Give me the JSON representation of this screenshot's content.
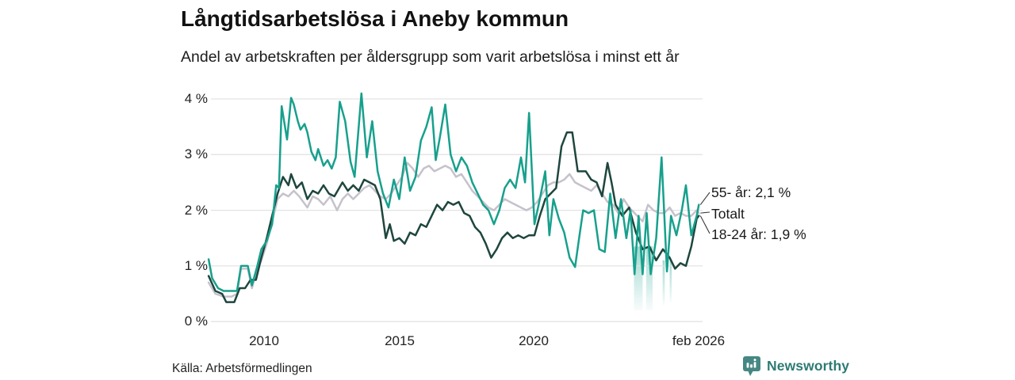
{
  "title": "Långtidsarbetslösa i Aneby kommun",
  "subtitle": "Andel av arbetskraften per åldersgrupp som varit arbetslösa i minst ett år",
  "source": "Källa: Arbetsförmedlingen",
  "branding": {
    "name": "Newsworthy",
    "logo_color": "#468783",
    "text_color": "#2E7B74"
  },
  "colors": {
    "series_55": "#17A08C",
    "series_total": "#C6C2CC",
    "series_1824": "#1E463E",
    "gridline": "#E3E3E3",
    "connector": "#3a3a3a",
    "band_fill": "#17A08C"
  },
  "axes": {
    "y_ticks": [
      "4 %",
      "3 %",
      "2 %",
      "1 %",
      "0 %"
    ],
    "x_ticks": [
      "2010",
      "2015",
      "2020",
      "feb 2026"
    ]
  },
  "end_labels": [
    {
      "text": "55- år: 2,1 %"
    },
    {
      "text": "Totalt"
    },
    {
      "text": "18-24 år: 1,9 %"
    }
  ],
  "chart_data": {
    "type": "line",
    "title": "Långtidsarbetslösa i Aneby kommun",
    "subtitle": "Andel av arbetskraften per åldersgrupp som varit arbetslösa i minst ett år",
    "xlabel": "",
    "ylabel": "%",
    "ylim": [
      0,
      4
    ],
    "xlim": [
      2007.9,
      2026.17
    ],
    "x_unit": "decimal_year",
    "grid": "horizontal",
    "legend_position": "right-end-labels",
    "series": [
      {
        "name": "Totalt",
        "color": "#C6C2CC",
        "end_label": "Totalt",
        "points": [
          [
            2007.95,
            0.7
          ],
          [
            2008.2,
            0.5
          ],
          [
            2008.5,
            0.45
          ],
          [
            2008.8,
            0.45
          ],
          [
            2009.0,
            0.5
          ],
          [
            2009.15,
            0.95
          ],
          [
            2009.4,
            0.95
          ],
          [
            2009.55,
            0.6
          ],
          [
            2009.75,
            0.95
          ],
          [
            2009.9,
            1.1
          ],
          [
            2010.1,
            1.4
          ],
          [
            2010.3,
            1.8
          ],
          [
            2010.5,
            2.2
          ],
          [
            2010.7,
            2.3
          ],
          [
            2010.9,
            2.25
          ],
          [
            2011.1,
            2.35
          ],
          [
            2011.3,
            2.25
          ],
          [
            2011.6,
            2.05
          ],
          [
            2011.8,
            2.25
          ],
          [
            2012.0,
            2.2
          ],
          [
            2012.2,
            2.1
          ],
          [
            2012.45,
            2.25
          ],
          [
            2012.7,
            2.0
          ],
          [
            2012.9,
            2.2
          ],
          [
            2013.1,
            2.3
          ],
          [
            2013.3,
            2.2
          ],
          [
            2013.5,
            2.3
          ],
          [
            2013.7,
            2.4
          ],
          [
            2013.9,
            2.45
          ],
          [
            2014.1,
            2.35
          ],
          [
            2014.3,
            2.25
          ],
          [
            2014.5,
            2.2
          ],
          [
            2014.7,
            2.3
          ],
          [
            2014.9,
            2.45
          ],
          [
            2015.1,
            2.6
          ],
          [
            2015.3,
            2.85
          ],
          [
            2015.5,
            2.75
          ],
          [
            2015.7,
            2.6
          ],
          [
            2015.9,
            2.75
          ],
          [
            2016.1,
            2.8
          ],
          [
            2016.3,
            2.7
          ],
          [
            2016.5,
            2.75
          ],
          [
            2016.7,
            2.8
          ],
          [
            2016.9,
            2.75
          ],
          [
            2017.1,
            2.6
          ],
          [
            2017.3,
            2.65
          ],
          [
            2017.5,
            2.5
          ],
          [
            2017.7,
            2.35
          ],
          [
            2017.9,
            2.25
          ],
          [
            2018.1,
            2.15
          ],
          [
            2018.3,
            2.05
          ],
          [
            2018.5,
            2.0
          ],
          [
            2018.7,
            2.1
          ],
          [
            2018.9,
            2.2
          ],
          [
            2019.1,
            2.15
          ],
          [
            2019.3,
            2.1
          ],
          [
            2019.5,
            2.05
          ],
          [
            2019.7,
            2.0
          ],
          [
            2019.9,
            2.05
          ],
          [
            2020.1,
            2.15
          ],
          [
            2020.3,
            2.3
          ],
          [
            2020.5,
            2.45
          ],
          [
            2020.7,
            2.5
          ],
          [
            2020.9,
            2.5
          ],
          [
            2021.1,
            2.55
          ],
          [
            2021.3,
            2.65
          ],
          [
            2021.5,
            2.5
          ],
          [
            2021.7,
            2.45
          ],
          [
            2021.9,
            2.4
          ],
          [
            2022.1,
            2.35
          ],
          [
            2022.3,
            2.45
          ],
          [
            2022.5,
            2.3
          ],
          [
            2022.7,
            2.15
          ],
          [
            2022.9,
            2.1
          ],
          [
            2023.1,
            1.95
          ],
          [
            2023.3,
            2.2
          ],
          [
            2023.5,
            2.05
          ],
          [
            2023.7,
            1.95
          ],
          [
            2023.9,
            1.85
          ],
          [
            2024.0,
            1.8
          ],
          [
            2024.2,
            2.1
          ],
          [
            2024.4,
            2.0
          ],
          [
            2024.6,
            1.95
          ],
          [
            2024.8,
            1.95
          ],
          [
            2025.0,
            2.05
          ],
          [
            2025.2,
            1.9
          ],
          [
            2025.4,
            1.95
          ],
          [
            2025.6,
            1.9
          ],
          [
            2025.8,
            1.9
          ],
          [
            2026.0,
            2.0
          ],
          [
            2026.08,
            1.95
          ]
        ]
      },
      {
        "name": "18-24 år",
        "color": "#1E463E",
        "end_label": "18-24 år: 1,9 %",
        "end_value": 1.9,
        "points": [
          [
            2007.95,
            0.82
          ],
          [
            2008.2,
            0.55
          ],
          [
            2008.45,
            0.5
          ],
          [
            2008.6,
            0.35
          ],
          [
            2008.9,
            0.35
          ],
          [
            2009.1,
            0.6
          ],
          [
            2009.3,
            0.6
          ],
          [
            2009.5,
            0.75
          ],
          [
            2009.7,
            0.75
          ],
          [
            2009.9,
            1.15
          ],
          [
            2010.1,
            1.5
          ],
          [
            2010.3,
            1.9
          ],
          [
            2010.5,
            2.3
          ],
          [
            2010.7,
            2.6
          ],
          [
            2010.9,
            2.45
          ],
          [
            2011.0,
            2.65
          ],
          [
            2011.2,
            2.4
          ],
          [
            2011.4,
            2.5
          ],
          [
            2011.6,
            2.2
          ],
          [
            2011.8,
            2.35
          ],
          [
            2012.0,
            2.3
          ],
          [
            2012.2,
            2.45
          ],
          [
            2012.4,
            2.3
          ],
          [
            2012.6,
            2.25
          ],
          [
            2012.9,
            2.5
          ],
          [
            2013.1,
            2.35
          ],
          [
            2013.3,
            2.45
          ],
          [
            2013.5,
            2.35
          ],
          [
            2013.7,
            2.55
          ],
          [
            2013.9,
            2.5
          ],
          [
            2014.1,
            2.45
          ],
          [
            2014.3,
            2.2
          ],
          [
            2014.5,
            1.5
          ],
          [
            2014.65,
            1.75
          ],
          [
            2014.8,
            1.45
          ],
          [
            2015.0,
            1.5
          ],
          [
            2015.2,
            1.4
          ],
          [
            2015.4,
            1.6
          ],
          [
            2015.6,
            1.55
          ],
          [
            2015.8,
            1.75
          ],
          [
            2016.0,
            1.7
          ],
          [
            2016.2,
            1.9
          ],
          [
            2016.4,
            2.1
          ],
          [
            2016.6,
            2.0
          ],
          [
            2016.8,
            2.15
          ],
          [
            2017.0,
            2.1
          ],
          [
            2017.2,
            2.15
          ],
          [
            2017.4,
            1.95
          ],
          [
            2017.6,
            1.9
          ],
          [
            2017.8,
            1.7
          ],
          [
            2018.0,
            1.6
          ],
          [
            2018.2,
            1.4
          ],
          [
            2018.4,
            1.15
          ],
          [
            2018.6,
            1.3
          ],
          [
            2018.8,
            1.5
          ],
          [
            2019.0,
            1.6
          ],
          [
            2019.2,
            1.5
          ],
          [
            2019.4,
            1.55
          ],
          [
            2019.6,
            1.5
          ],
          [
            2019.8,
            1.55
          ],
          [
            2020.0,
            1.55
          ],
          [
            2020.2,
            1.9
          ],
          [
            2020.4,
            2.2
          ],
          [
            2020.6,
            2.3
          ],
          [
            2020.8,
            2.4
          ],
          [
            2021.0,
            3.15
          ],
          [
            2021.2,
            3.4
          ],
          [
            2021.4,
            3.4
          ],
          [
            2021.6,
            2.7
          ],
          [
            2021.9,
            2.7
          ],
          [
            2022.1,
            2.55
          ],
          [
            2022.3,
            2.5
          ],
          [
            2022.5,
            2.25
          ],
          [
            2022.7,
            2.85
          ],
          [
            2022.85,
            2.5
          ],
          [
            2023.0,
            2.1
          ],
          [
            2023.25,
            1.9
          ],
          [
            2023.5,
            2.05
          ],
          [
            2023.75,
            1.6
          ],
          [
            2024.0,
            1.3
          ],
          [
            2024.25,
            1.35
          ],
          [
            2024.5,
            1.1
          ],
          [
            2024.75,
            1.3
          ],
          [
            2025.0,
            1.15
          ],
          [
            2025.2,
            0.95
          ],
          [
            2025.4,
            1.05
          ],
          [
            2025.6,
            1.0
          ],
          [
            2025.8,
            1.35
          ],
          [
            2026.0,
            1.85
          ],
          [
            2026.08,
            1.9
          ]
        ]
      },
      {
        "name": "55- år",
        "color": "#17A08C",
        "end_label": "55- år: 2,1 %",
        "end_value": 2.1,
        "points": [
          [
            2007.95,
            1.12
          ],
          [
            2008.08,
            0.78
          ],
          [
            2008.3,
            0.6
          ],
          [
            2008.5,
            0.55
          ],
          [
            2008.75,
            0.55
          ],
          [
            2009.0,
            0.55
          ],
          [
            2009.15,
            1.0
          ],
          [
            2009.4,
            1.0
          ],
          [
            2009.55,
            0.65
          ],
          [
            2009.75,
            1.0
          ],
          [
            2009.9,
            1.3
          ],
          [
            2010.1,
            1.45
          ],
          [
            2010.3,
            1.75
          ],
          [
            2010.45,
            2.45
          ],
          [
            2010.55,
            2.4
          ],
          [
            2010.65,
            3.87
          ],
          [
            2010.85,
            3.27
          ],
          [
            2011.0,
            4.02
          ],
          [
            2011.1,
            3.9
          ],
          [
            2011.25,
            3.6
          ],
          [
            2011.35,
            3.45
          ],
          [
            2011.5,
            3.55
          ],
          [
            2011.6,
            3.4
          ],
          [
            2011.75,
            3.05
          ],
          [
            2011.9,
            2.9
          ],
          [
            2012.0,
            3.1
          ],
          [
            2012.2,
            2.8
          ],
          [
            2012.35,
            2.9
          ],
          [
            2012.5,
            2.75
          ],
          [
            2012.65,
            2.95
          ],
          [
            2012.8,
            3.95
          ],
          [
            2013.0,
            3.6
          ],
          [
            2013.2,
            2.87
          ],
          [
            2013.35,
            2.6
          ],
          [
            2013.6,
            4.1
          ],
          [
            2013.8,
            2.95
          ],
          [
            2014.0,
            3.6
          ],
          [
            2014.2,
            2.7
          ],
          [
            2014.4,
            2.3
          ],
          [
            2014.6,
            2.05
          ],
          [
            2014.8,
            2.55
          ],
          [
            2015.0,
            2.2
          ],
          [
            2015.2,
            2.95
          ],
          [
            2015.4,
            2.35
          ],
          [
            2015.6,
            2.6
          ],
          [
            2015.8,
            3.25
          ],
          [
            2016.0,
            3.5
          ],
          [
            2016.2,
            3.85
          ],
          [
            2016.35,
            2.9
          ],
          [
            2016.5,
            3.3
          ],
          [
            2016.7,
            3.9
          ],
          [
            2016.9,
            3.0
          ],
          [
            2017.1,
            2.7
          ],
          [
            2017.3,
            2.95
          ],
          [
            2017.5,
            2.8
          ],
          [
            2017.7,
            2.5
          ],
          [
            2017.9,
            2.3
          ],
          [
            2018.1,
            2.1
          ],
          [
            2018.3,
            2.0
          ],
          [
            2018.5,
            1.75
          ],
          [
            2018.7,
            2.0
          ],
          [
            2018.9,
            2.4
          ],
          [
            2019.1,
            2.55
          ],
          [
            2019.3,
            2.4
          ],
          [
            2019.5,
            2.95
          ],
          [
            2019.65,
            2.5
          ],
          [
            2019.8,
            3.75
          ],
          [
            2020.0,
            1.75
          ],
          [
            2020.2,
            2.2
          ],
          [
            2020.4,
            2.7
          ],
          [
            2020.55,
            1.55
          ],
          [
            2020.7,
            2.2
          ],
          [
            2020.9,
            1.85
          ],
          [
            2021.1,
            1.6
          ],
          [
            2021.3,
            1.15
          ],
          [
            2021.5,
            0.98
          ],
          [
            2021.65,
            1.5
          ],
          [
            2021.8,
            2.0
          ],
          [
            2022.0,
            1.95
          ],
          [
            2022.2,
            2.0
          ],
          [
            2022.4,
            1.3
          ],
          [
            2022.6,
            1.25
          ],
          [
            2022.8,
            2.3
          ],
          [
            2023.0,
            1.5
          ],
          [
            2023.2,
            2.2
          ],
          [
            2023.4,
            1.5
          ],
          [
            2023.55,
            2.0
          ],
          [
            2023.7,
            0.85
          ],
          [
            2023.85,
            1.9
          ],
          [
            2024.0,
            0.85
          ],
          [
            2024.15,
            1.95
          ],
          [
            2024.3,
            0.85
          ],
          [
            2024.5,
            1.5
          ],
          [
            2024.7,
            2.95
          ],
          [
            2024.9,
            0.9
          ],
          [
            2025.05,
            1.9
          ],
          [
            2025.25,
            1.55
          ],
          [
            2025.45,
            2.0
          ],
          [
            2025.6,
            2.45
          ],
          [
            2025.8,
            1.55
          ],
          [
            2026.0,
            1.9
          ],
          [
            2026.08,
            2.1
          ]
        ]
      }
    ],
    "uncertainty_bands": [
      {
        "from": 2023.68,
        "to": 2024.0,
        "top_value": 1.35,
        "bottom_value": 0.2
      },
      {
        "from": 2024.13,
        "to": 2024.37,
        "top_value": 1.35,
        "bottom_value": 0.2
      },
      {
        "from": 2024.74,
        "to": 2024.82,
        "top_value": 1.1,
        "bottom_value": 0.3
      },
      {
        "from": 2025.0,
        "to": 2025.06,
        "top_value": 1.1,
        "bottom_value": 0.35
      }
    ]
  }
}
